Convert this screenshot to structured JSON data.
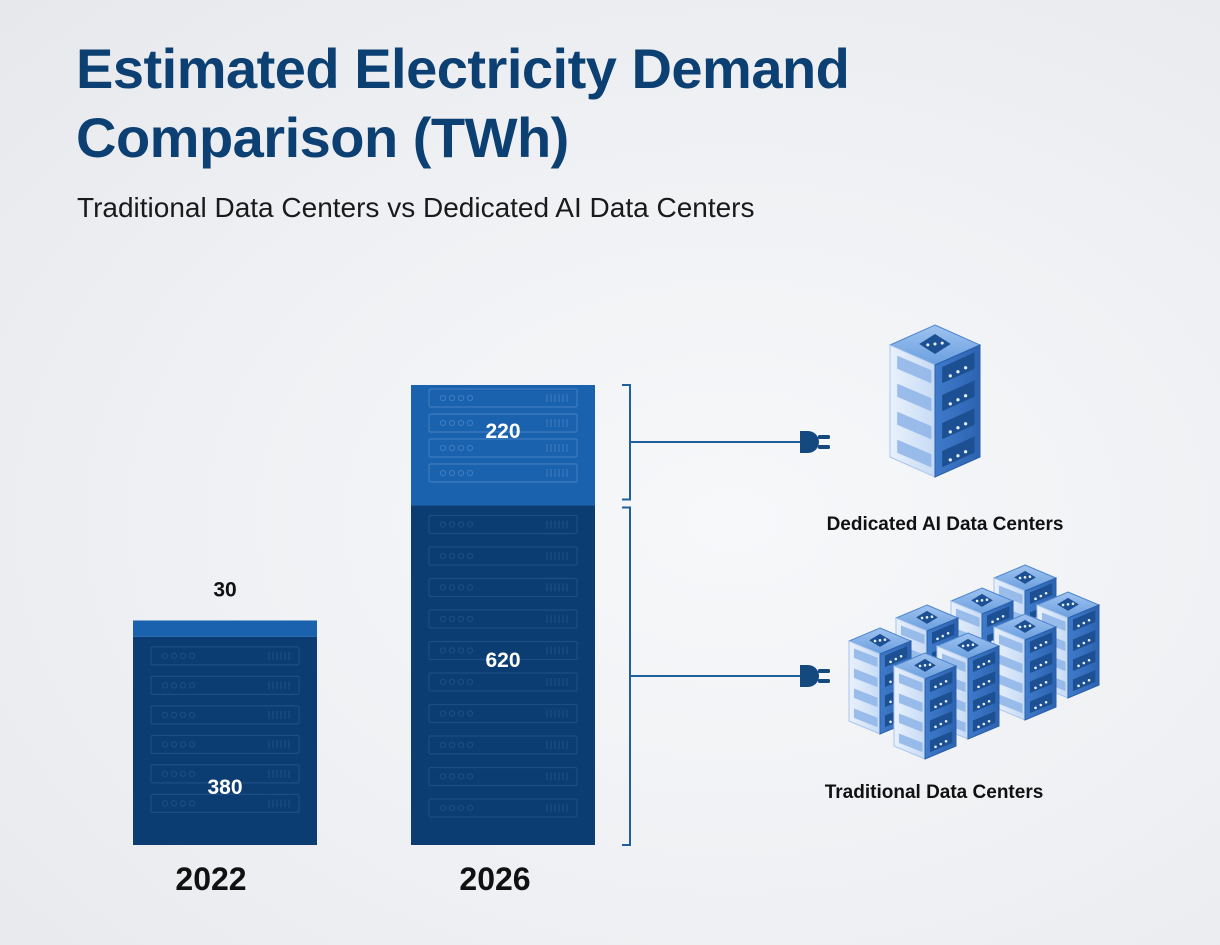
{
  "chart_data": {
    "type": "bar",
    "stacked": true,
    "title": "Estimated Electricity Demand Comparison (TWh)",
    "subtitle": "Traditional Data Centers vs Dedicated AI Data Centers",
    "categories": [
      "2022",
      "2026"
    ],
    "series": [
      {
        "name": "Traditional Data Centers",
        "values": [
          380,
          620
        ],
        "color": "#0c3d72"
      },
      {
        "name": "Dedicated AI Data Centers",
        "values": [
          30,
          220
        ],
        "color": "#1a62ae"
      }
    ],
    "value_labels": {
      "traditional": [
        "380",
        "620"
      ],
      "ai": [
        "30",
        "220"
      ]
    },
    "legend_labels": {
      "ai": "Dedicated AI Data Centers",
      "traditional": "Traditional Data Centers"
    },
    "xlabel": "",
    "ylabel": "",
    "grid": false,
    "colors": {
      "accent_line": "#1f5f9c",
      "server_light": "#5b93d6",
      "server_face": "#3d78c4"
    }
  }
}
